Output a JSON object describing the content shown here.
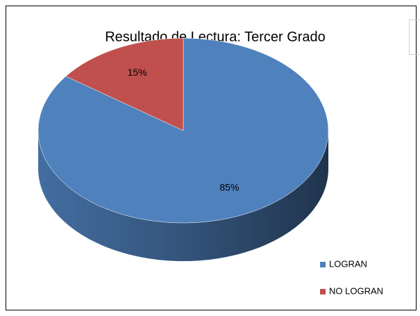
{
  "chart_data": {
    "type": "pie3d",
    "title": "Resultado de Lectura: Tercer Grado",
    "categories": [
      "LOGRAN",
      "NO LOGRAN"
    ],
    "values": [
      85,
      15
    ],
    "value_labels": [
      "85%",
      "15%"
    ],
    "colors": [
      "#4f81bd",
      "#c0504d"
    ],
    "legend": "bottom-right"
  }
}
